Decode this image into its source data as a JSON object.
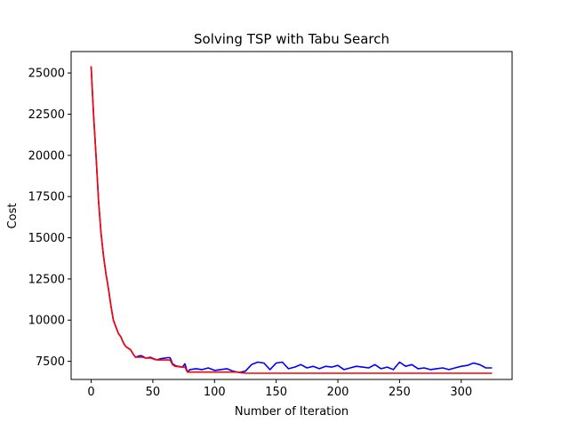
{
  "chart_data": {
    "type": "line",
    "title": "Solving TSP with Tabu Search",
    "xlabel": "Number of Iteration",
    "ylabel": "Cost",
    "xlim": [
      -16.25,
      341.25
    ],
    "ylim": [
      6400,
      26300
    ],
    "xticks": [
      0,
      50,
      100,
      150,
      200,
      250,
      300
    ],
    "yticks": [
      7500,
      10000,
      12500,
      15000,
      17500,
      20000,
      22500,
      25000
    ],
    "grid": false,
    "legend": "none",
    "series": [
      {
        "color": "#0000ff",
        "x": [
          0,
          2,
          4,
          6,
          8,
          10,
          12,
          14,
          16,
          18,
          20,
          22,
          24,
          26,
          28,
          30,
          32,
          34,
          36,
          38,
          40,
          42,
          44,
          46,
          48,
          50,
          52,
          54,
          56,
          58,
          60,
          62,
          64,
          66,
          68,
          70,
          72,
          74,
          76,
          78,
          80,
          85,
          90,
          95,
          100,
          105,
          110,
          115,
          120,
          125,
          130,
          135,
          140,
          145,
          150,
          155,
          160,
          165,
          170,
          175,
          180,
          185,
          190,
          195,
          200,
          205,
          210,
          215,
          220,
          225,
          230,
          235,
          240,
          245,
          250,
          255,
          260,
          265,
          270,
          275,
          280,
          285,
          290,
          295,
          300,
          305,
          310,
          315,
          320,
          325
        ],
        "y": [
          25400,
          22400,
          19900,
          17200,
          15300,
          13900,
          12800,
          11900,
          10900,
          10000,
          9600,
          9200,
          9000,
          8650,
          8400,
          8300,
          8200,
          7950,
          7750,
          7800,
          7850,
          7800,
          7700,
          7720,
          7750,
          7680,
          7620,
          7600,
          7650,
          7680,
          7700,
          7720,
          7720,
          7350,
          7250,
          7200,
          7180,
          7150,
          7350,
          6850,
          7000,
          7050,
          7000,
          7100,
          6950,
          7000,
          7050,
          6900,
          6820,
          6900,
          7300,
          7450,
          7400,
          7000,
          7400,
          7450,
          7050,
          7150,
          7300,
          7100,
          7200,
          7050,
          7200,
          7150,
          7250,
          7000,
          7100,
          7200,
          7150,
          7100,
          7300,
          7050,
          7150,
          7000,
          7450,
          7200,
          7300,
          7050,
          7100,
          7000,
          7050,
          7100,
          7000,
          7100,
          7200,
          7250,
          7400,
          7300,
          7100,
          7100
        ]
      },
      {
        "color": "#ff0000",
        "x": [
          0,
          2,
          4,
          6,
          8,
          10,
          12,
          14,
          16,
          18,
          20,
          22,
          24,
          26,
          28,
          30,
          32,
          34,
          36,
          38,
          40,
          42,
          44,
          46,
          48,
          50,
          52,
          54,
          56,
          58,
          60,
          62,
          64,
          66,
          68,
          70,
          72,
          74,
          76,
          78,
          100,
          118,
          122,
          126,
          325
        ],
        "y": [
          25400,
          22400,
          19900,
          17200,
          15300,
          13900,
          12800,
          11900,
          10900,
          10000,
          9600,
          9200,
          9000,
          8650,
          8400,
          8300,
          8200,
          7950,
          7750,
          7750,
          7750,
          7750,
          7700,
          7700,
          7700,
          7650,
          7600,
          7580,
          7580,
          7580,
          7580,
          7580,
          7580,
          7300,
          7200,
          7180,
          7160,
          7150,
          7150,
          6850,
          6850,
          6850,
          6800,
          6780,
          6780
        ]
      }
    ]
  }
}
